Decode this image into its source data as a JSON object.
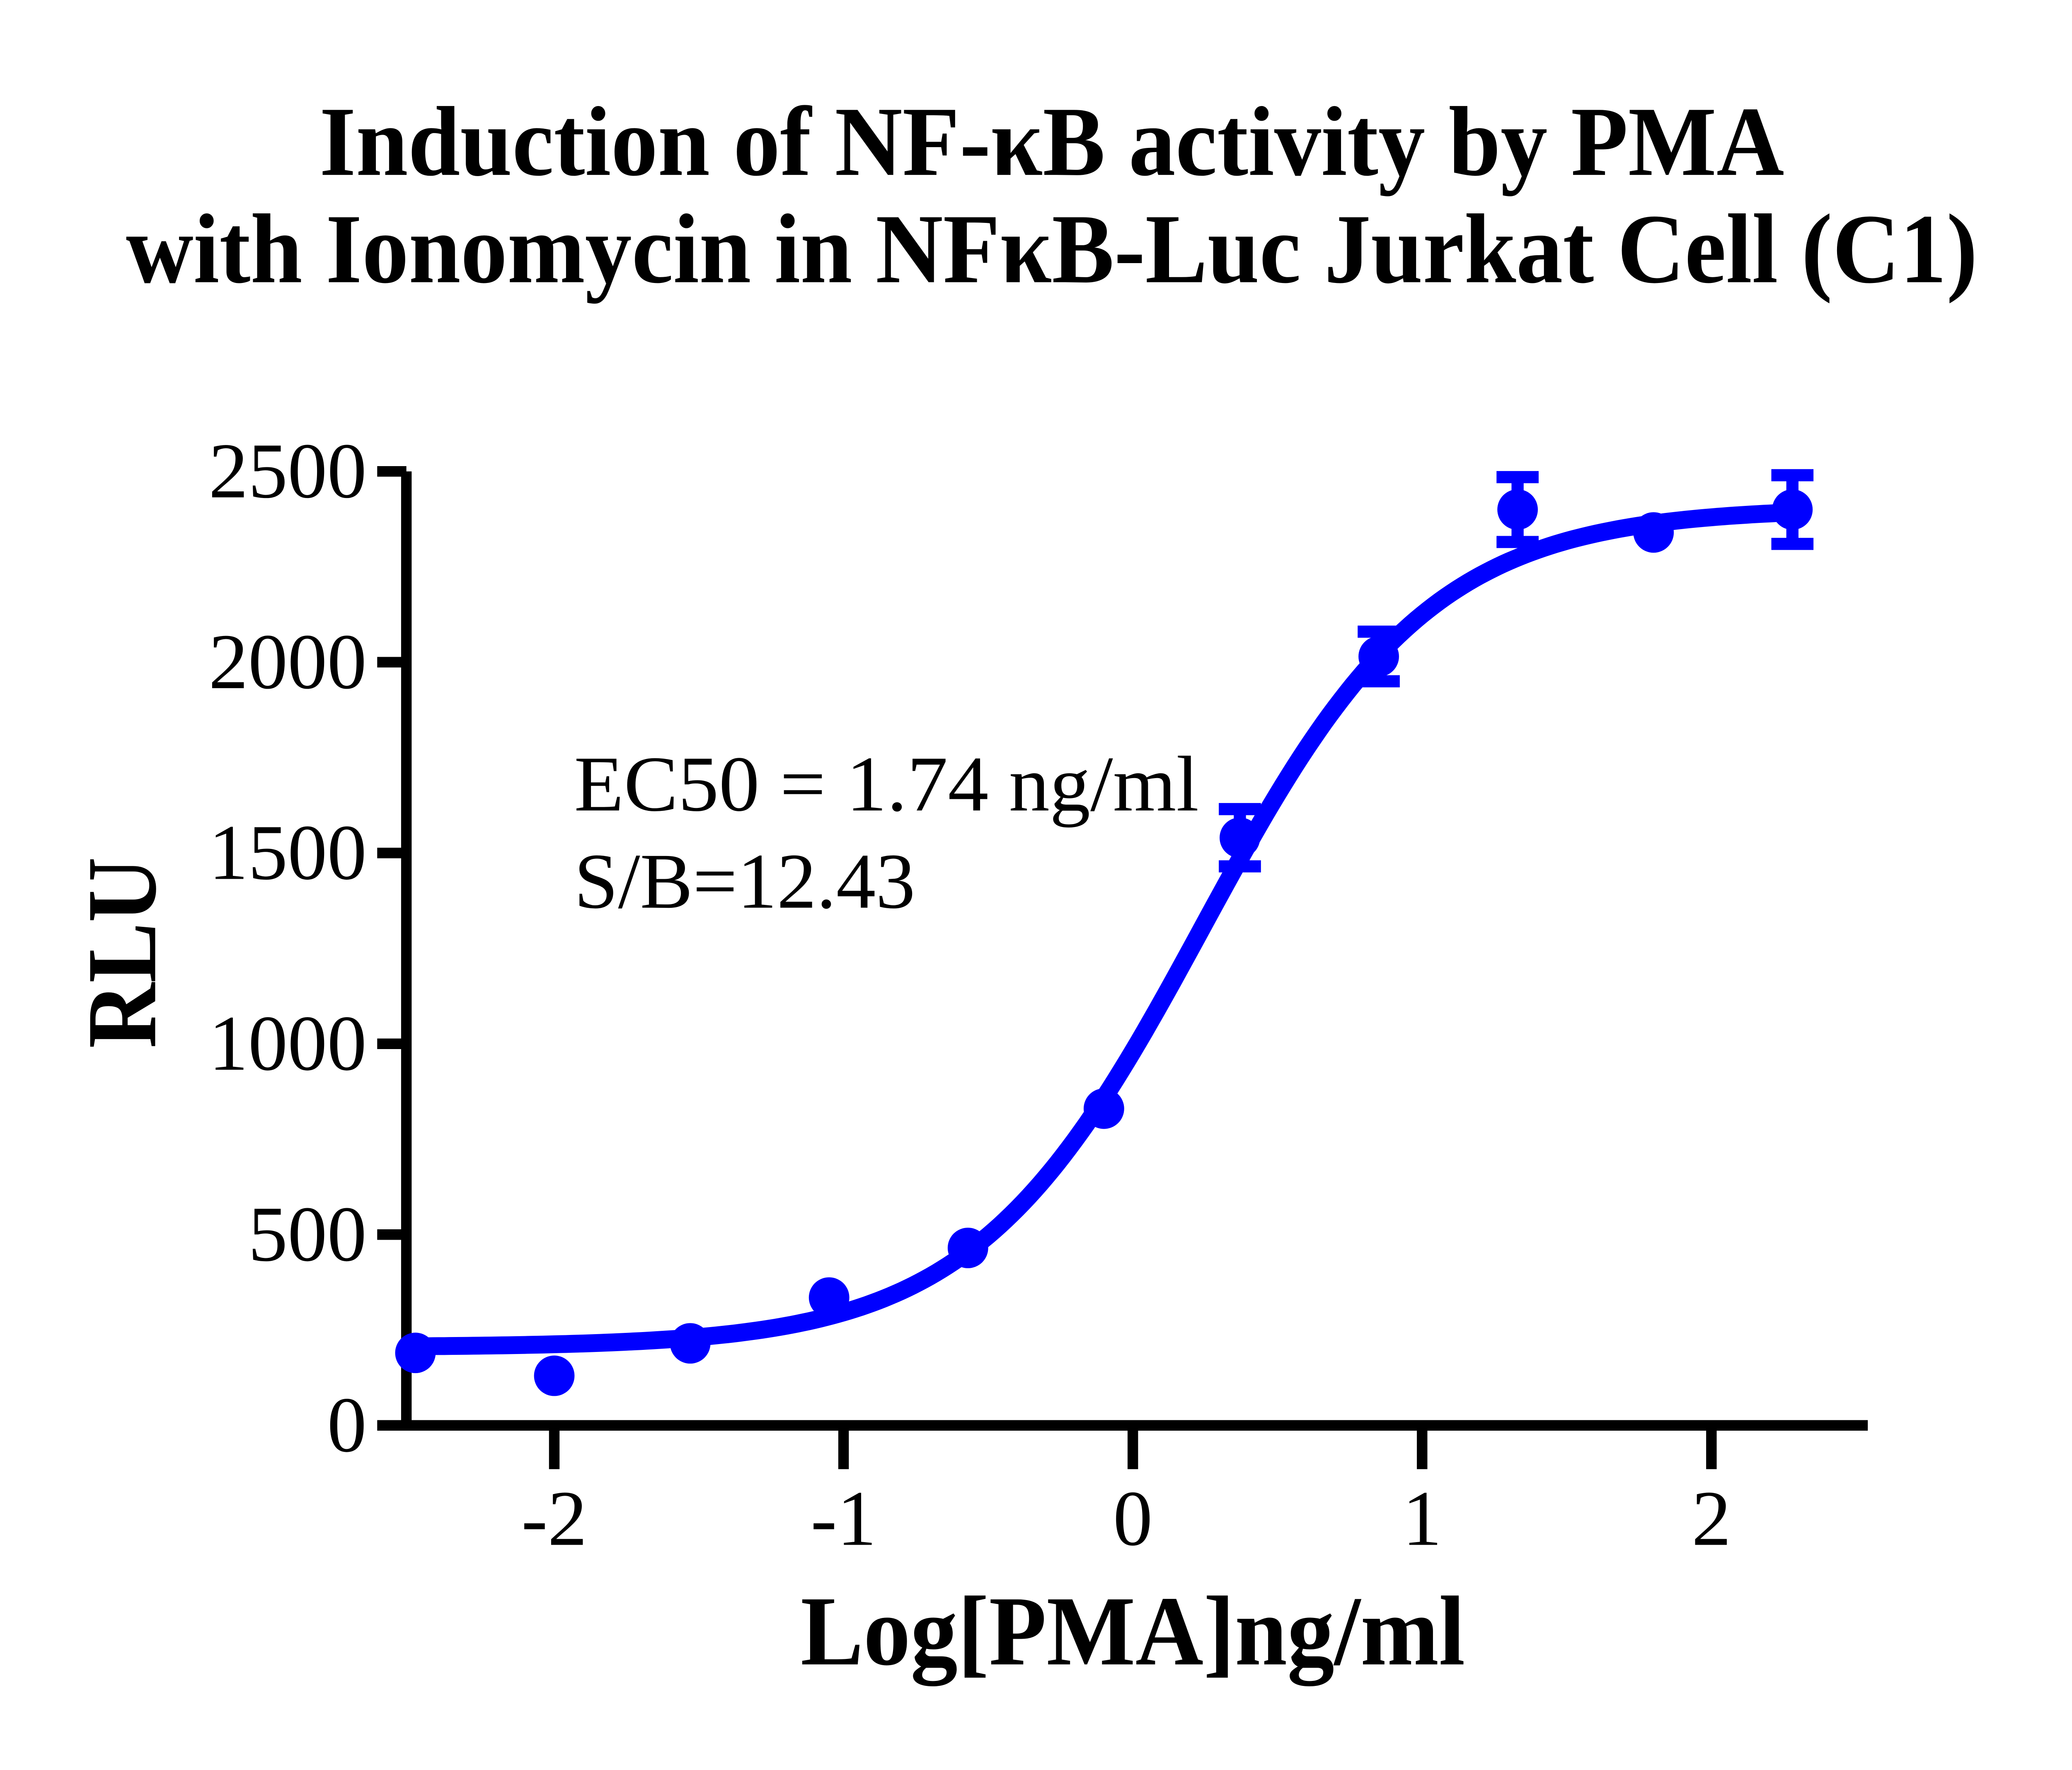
{
  "title": {
    "line1": "Induction of NF-κB activity by PMA",
    "line2": "with Ionomycin in NFκB-Luc Jurkat Cell (C1)"
  },
  "annotation": {
    "line1": "EC50 = 1.74 ng/ml",
    "line2": "S/B=12.43"
  },
  "axes": {
    "x": {
      "label": "Log[PMA]ng/ml",
      "ticks": [
        "-2",
        "-1",
        "0",
        "1",
        "2"
      ]
    },
    "y": {
      "label": "RLU",
      "ticks": [
        "0",
        "500",
        "1000",
        "1500",
        "2000",
        "2500"
      ]
    }
  },
  "colors": {
    "curve": "#0000FF",
    "axis": "#000000",
    "text": "#000000",
    "background": "#FFFFFF"
  },
  "chart_data": {
    "type": "scatter",
    "title": "Induction of NF-κB activity by PMA with Ionomycin in NFκB-Luc Jurkat Cell (C1)",
    "xlabel": "Log[PMA]ng/ml",
    "ylabel": "RLU",
    "xlim": [
      -2.62,
      2.54
    ],
    "ylim": [
      0,
      2500
    ],
    "x_ticks": [
      -2,
      -1,
      0,
      1,
      2
    ],
    "y_ticks": [
      0,
      500,
      1000,
      1500,
      2000,
      2500
    ],
    "ec50_ng_per_ml": 1.74,
    "signal_to_background": 12.43,
    "series": [
      {
        "name": "PMA with Ionomycin",
        "color": "#0000FF",
        "points": [
          {
            "x": -2.48,
            "y": 190,
            "err": 0
          },
          {
            "x": -2.0,
            "y": 130,
            "err": 0
          },
          {
            "x": -1.53,
            "y": 215,
            "err": 0
          },
          {
            "x": -1.05,
            "y": 335,
            "err": 0
          },
          {
            "x": -0.57,
            "y": 465,
            "err": 0
          },
          {
            "x": -0.1,
            "y": 830,
            "err": 0
          },
          {
            "x": 0.37,
            "y": 1540,
            "err": 75
          },
          {
            "x": 0.85,
            "y": 2015,
            "err": 65
          },
          {
            "x": 1.33,
            "y": 2400,
            "err": 85
          },
          {
            "x": 1.8,
            "y": 2340,
            "err": 0
          },
          {
            "x": 2.28,
            "y": 2400,
            "err": 90
          }
        ],
        "fit_curve": {
          "model": "4PL",
          "bottom": 205,
          "top": 2405,
          "log_ec50": 0.2405,
          "hill": 1.1,
          "x_start": -2.48,
          "x_end": 2.28
        }
      }
    ]
  }
}
